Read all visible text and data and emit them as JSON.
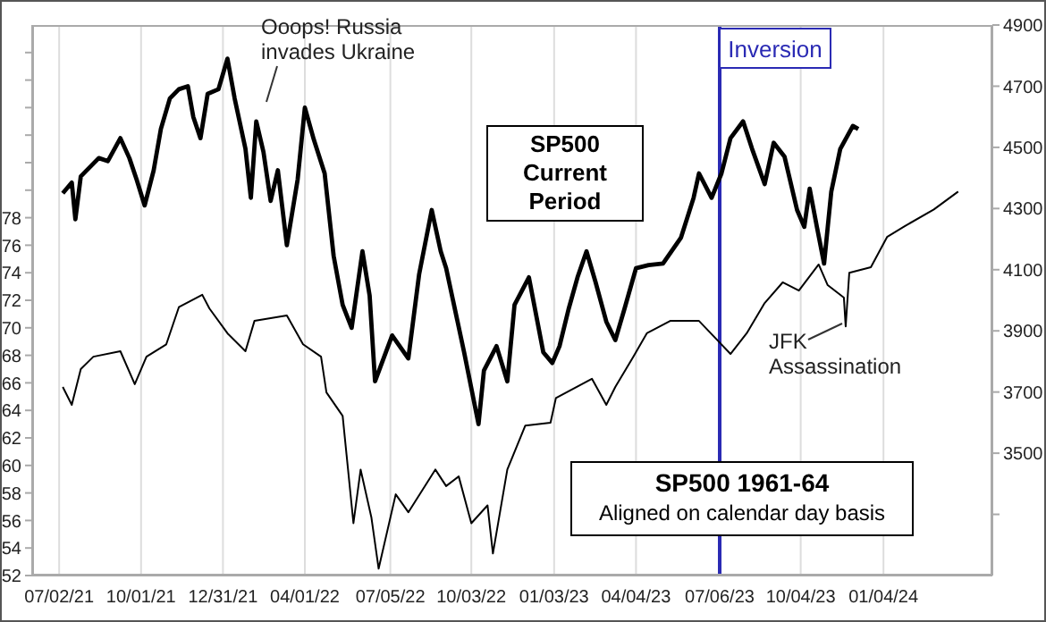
{
  "chart_data": {
    "type": "line",
    "xlim": [
      "2021-06-02",
      "2024-05-04"
    ],
    "xticks": [
      {
        "value": "2021-07-02",
        "label": "07/02/21"
      },
      {
        "value": "2021-10-01",
        "label": "10/01/21"
      },
      {
        "value": "2021-12-31",
        "label": "12/31/21"
      },
      {
        "value": "2022-04-01",
        "label": "04/01/22"
      },
      {
        "value": "2022-07-05",
        "label": "07/05/22"
      },
      {
        "value": "2022-10-03",
        "label": "10/03/22"
      },
      {
        "value": "2023-01-03",
        "label": "01/03/23"
      },
      {
        "value": "2023-04-04",
        "label": "04/04/23"
      },
      {
        "value": "2023-07-06",
        "label": "07/06/23"
      },
      {
        "value": "2023-10-04",
        "label": "10/04/23"
      },
      {
        "value": "2024-01-04",
        "label": "01/04/24"
      }
    ],
    "ylim": [
      52,
      92
    ],
    "yticks": [
      52,
      54,
      56,
      58,
      60,
      62,
      64,
      66,
      68,
      70,
      72,
      74,
      76,
      78,
      {
        "value": 80,
        "label": null
      },
      {
        "value": 82,
        "label": null
      },
      {
        "value": 84,
        "label": null
      },
      {
        "value": 86,
        "label": null
      },
      {
        "value": 88,
        "label": null
      },
      {
        "value": 90,
        "label": null
      }
    ],
    "y2lim": [
      3100,
      4900
    ],
    "y2ticks": [
      {
        "value": 3300,
        "label": null
      },
      3500,
      3700,
      3900,
      4100,
      4300,
      4500,
      4700,
      4900
    ],
    "grid": "x",
    "series": [
      {
        "name": "SP500 Current Period",
        "color": "#000000",
        "axis": "y2",
        "x": [
          "2021-07-06",
          "2021-07-16",
          "2021-07-20",
          "2021-07-26",
          "2021-08-15",
          "2021-08-25",
          "2021-09-08",
          "2021-09-18",
          "2021-09-26",
          "2021-10-05",
          "2021-10-15",
          "2021-10-23",
          "2021-11-02",
          "2021-11-12",
          "2021-11-22",
          "2021-11-28",
          "2021-12-06",
          "2021-12-14",
          "2021-12-26",
          "2022-01-05",
          "2022-01-13",
          "2022-01-25",
          "2022-01-31",
          "2022-02-06",
          "2022-02-14",
          "2022-02-22",
          "2022-03-02",
          "2022-03-12",
          "2022-03-24",
          "2022-04-01",
          "2022-04-11",
          "2022-04-23",
          "2022-05-03",
          "2022-05-13",
          "2022-05-23",
          "2022-06-04",
          "2022-06-12",
          "2022-06-18",
          "2022-07-07",
          "2022-07-25",
          "2022-08-06",
          "2022-08-20",
          "2022-08-30",
          "2022-09-05",
          "2022-09-25",
          "2022-10-11",
          "2022-10-17",
          "2022-10-31",
          "2022-11-12",
          "2022-11-20",
          "2022-12-06",
          "2022-12-22",
          "2023-01-01",
          "2023-01-09",
          "2023-01-19",
          "2023-01-29",
          "2023-02-08",
          "2023-02-18",
          "2023-03-02",
          "2023-03-12",
          "2023-03-22",
          "2023-04-04",
          "2023-04-18",
          "2023-05-04",
          "2023-05-24",
          "2023-06-07",
          "2023-06-13",
          "2023-06-27",
          "2023-07-08",
          "2023-07-18",
          "2023-08-01",
          "2023-08-11",
          "2023-08-25",
          "2023-09-04",
          "2023-09-16",
          "2023-09-30",
          "2023-10-08",
          "2023-10-14",
          "2023-10-22",
          "2023-10-30",
          "2023-11-07",
          "2023-11-17",
          "2023-12-01",
          "2023-12-07"
        ],
        "values": [
          4350,
          4385,
          4265,
          4405,
          4465,
          4455,
          4530,
          4465,
          4395,
          4310,
          4425,
          4560,
          4660,
          4690,
          4700,
          4600,
          4530,
          4675,
          4690,
          4790,
          4660,
          4495,
          4335,
          4585,
          4485,
          4325,
          4425,
          4180,
          4395,
          4630,
          4525,
          4415,
          4145,
          3985,
          3910,
          4160,
          4015,
          3735,
          3885,
          3810,
          4085,
          4295,
          4160,
          4105,
          3830,
          3595,
          3770,
          3850,
          3735,
          3985,
          4075,
          3830,
          3795,
          3850,
          3970,
          4075,
          4160,
          4060,
          3930,
          3870,
          3970,
          4105,
          4115,
          4120,
          4205,
          4335,
          4415,
          4335,
          4415,
          4530,
          4585,
          4495,
          4380,
          4515,
          4470,
          4295,
          4240,
          4365,
          4240,
          4120,
          4355,
          4495,
          4570,
          4560
        ]
      },
      {
        "name": "SP500 1961-64",
        "color": "#000000",
        "x": [
          "2021-07-06",
          "2021-07-16",
          "2021-07-26",
          "2021-08-09",
          "2021-09-08",
          "2021-09-24",
          "2021-10-07",
          "2021-10-29",
          "2021-11-12",
          "2021-12-08",
          "2021-12-16",
          "2022-01-05",
          "2022-01-25",
          "2022-02-04",
          "2022-03-12",
          "2022-03-30",
          "2022-04-19",
          "2022-04-25",
          "2022-05-13",
          "2022-05-25",
          "2022-06-02",
          "2022-06-14",
          "2022-06-22",
          "2022-07-11",
          "2022-07-25",
          "2022-08-24",
          "2022-09-05",
          "2022-09-19",
          "2022-10-03",
          "2022-10-21",
          "2022-10-27",
          "2022-11-12",
          "2022-12-02",
          "2022-12-30",
          "2023-01-05",
          "2023-02-14",
          "2023-03-02",
          "2023-03-12",
          "2023-04-01",
          "2023-04-16",
          "2023-05-12",
          "2023-06-13",
          "2023-07-02",
          "2023-07-18",
          "2023-08-05",
          "2023-08-25",
          "2023-09-14",
          "2023-10-02",
          "2023-10-24",
          "2023-11-03",
          "2023-11-21",
          "2023-11-23",
          "2023-11-27",
          "2023-12-21",
          "2024-01-08",
          "2024-01-28",
          "2024-02-29",
          "2024-03-27"
        ],
        "values": [
          65.7,
          64.4,
          67.0,
          67.9,
          68.3,
          65.9,
          67.9,
          68.8,
          71.5,
          72.4,
          71.4,
          69.6,
          68.3,
          70.5,
          70.9,
          68.8,
          67.9,
          65.3,
          63.6,
          55.8,
          59.7,
          56.2,
          52.5,
          57.9,
          56.6,
          59.7,
          58.5,
          59.2,
          55.8,
          57.1,
          53.6,
          59.7,
          62.9,
          63.1,
          64.9,
          66.3,
          64.4,
          65.7,
          67.9,
          69.6,
          70.5,
          70.5,
          69.2,
          68.1,
          69.6,
          71.8,
          73.3,
          72.7,
          74.6,
          73.1,
          72.2,
          70.1,
          74.0,
          74.4,
          76.6,
          77.4,
          78.6,
          79.9
        ]
      }
    ],
    "ref_lines": [
      {
        "axis": "x",
        "value": "2023-07-06",
        "label": "Inversion",
        "color": "#2a2ab4"
      }
    ],
    "annotations": [
      "Ooops! Russia invades Ukraine",
      "JFK Assassination",
      "Aligned on calendar day basis"
    ]
  }
}
